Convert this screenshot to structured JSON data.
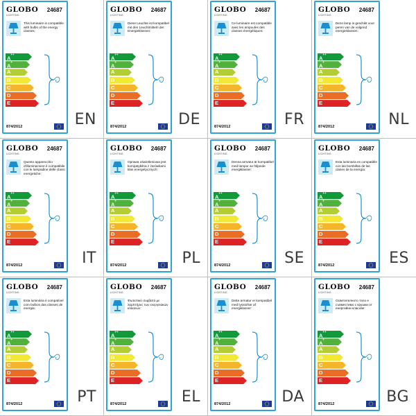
{
  "brand": "GLOBO",
  "brand_sub": "LIGHTING",
  "model": "24687",
  "regulation": "874/2012",
  "classes": [
    {
      "main": "A",
      "sup": "++",
      "color": "#129a3a"
    },
    {
      "main": "A",
      "sup": "+",
      "color": "#50b23b"
    },
    {
      "main": "A",
      "sup": "",
      "color": "#b2ce34"
    },
    {
      "main": "B",
      "sup": "",
      "color": "#f1e934"
    },
    {
      "main": "C",
      "sup": "",
      "color": "#f4b52b"
    },
    {
      "main": "D",
      "sup": "",
      "color": "#ea6d25"
    },
    {
      "main": "E",
      "sup": "",
      "color": "#dd2323"
    }
  ],
  "colors": {
    "border": "#2fa3d6",
    "lamp_panel": "#ccebf7",
    "eu_blue": "#1b3a9a",
    "eu_star": "#ffdd00"
  },
  "icons": {
    "lamp": "lamp-icon",
    "brace": "curly-brace-icon",
    "flag": "eu-flag-icon"
  },
  "labels": [
    {
      "lang": "EN",
      "text": "This luminaire is compatible with bulbs of the energy classes:"
    },
    {
      "lang": "DE",
      "text": "Diese Leuchte ist kompatibel mit den Leuchtmitteln der Energieklassen:"
    },
    {
      "lang": "FR",
      "text": "Ce luminaire est compatible avec les ampoules des classes énergétiques:"
    },
    {
      "lang": "NL",
      "text": "Deze lamp is geschikt voor peren van de volgend energieklassen:"
    },
    {
      "lang": "IT",
      "text": "Questo apparecchio d'illuminazione è compatibile con le lampadine delle classi energetiche:"
    },
    {
      "lang": "PL",
      "text": "Oprawa oświetleniowa jest kompatybilna z żarówkami klas energetycznych:"
    },
    {
      "lang": "SE",
      "text": "Denna armatur är kompatibel med lampor av följande energiklasser:"
    },
    {
      "lang": "ES",
      "text": "Esta luminaria es compatible con las bombillas de las clases de la energía:"
    },
    {
      "lang": "PT",
      "text": "Esta luminária é compatível com bulbos das classes de energia:"
    },
    {
      "lang": "EL",
      "text": "Φωτιστικό συμβατό με λαμπτήρες των ενεργειακών κλάσεων:"
    },
    {
      "lang": "DA",
      "text": "Dette armatur er kompatibel med lysstofrør af energiklasser:"
    },
    {
      "lang": "BG",
      "text": "Осветителното тяло е съвместимо с крушки от енергийни класове:"
    }
  ]
}
